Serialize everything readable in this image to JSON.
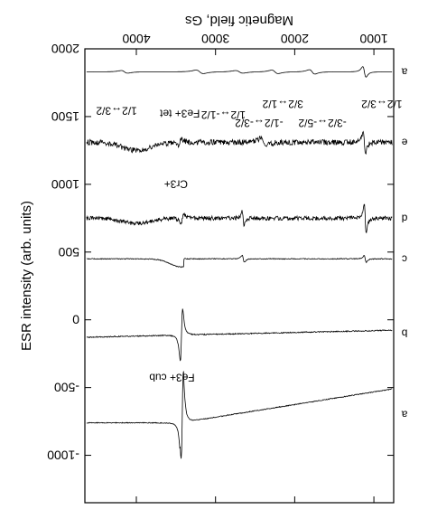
{
  "chart_data": {
    "type": "line",
    "orientation": "image is shown upside-down (rotated 180 degrees)",
    "xlabel": "Magnetic field, Gs",
    "ylabel": "ESR intensity (arb. units)",
    "xlim": [
      750,
      4650
    ],
    "ylim": [
      -1350,
      2000
    ],
    "x_ticks": [
      1000,
      2000,
      3000,
      4000
    ],
    "x_tick_labels": [
      "1000",
      "2000",
      "3000",
      "4000"
    ],
    "y_ticks": [
      -1000,
      -500,
      0,
      500,
      1000,
      1500,
      2000
    ],
    "y_tick_labels": [
      "-1000",
      "-500",
      "0",
      "500",
      "1000",
      "1500",
      "2000"
    ],
    "series": [
      {
        "name": "a",
        "baseline": 1830,
        "shape": "broad lines with a sharp dip near 1100 Gs"
      },
      {
        "name": "e",
        "baseline": 1310,
        "shape": "noisy, several resonances"
      },
      {
        "name": "d",
        "baseline": 750,
        "shape": "noisy, sharp line near 1100 Gs"
      },
      {
        "name": "c",
        "baseline": 450,
        "shape": "step near 3000 Gs"
      },
      {
        "name": "b",
        "baseline": -100,
        "shape": "strong derivative line near 3400 Gs"
      },
      {
        "name": "a",
        "baseline": -700,
        "shape": "strong derivative line near 3400 Gs, sloping baseline"
      }
    ],
    "annotations": [
      {
        "text": "Fe3+ cub"
      },
      {
        "text": "Cr3+"
      },
      {
        "text": "Fe3+ tet"
      },
      {
        "text": "1/2↔3/2"
      },
      {
        "text": "-3/2↔-5/2"
      },
      {
        "text": "3/2↔1/2"
      },
      {
        "text": "-1/2↔-3/2"
      },
      {
        "text": "1/2↔-1/2"
      },
      {
        "text": "1/2↔3/2"
      }
    ]
  }
}
